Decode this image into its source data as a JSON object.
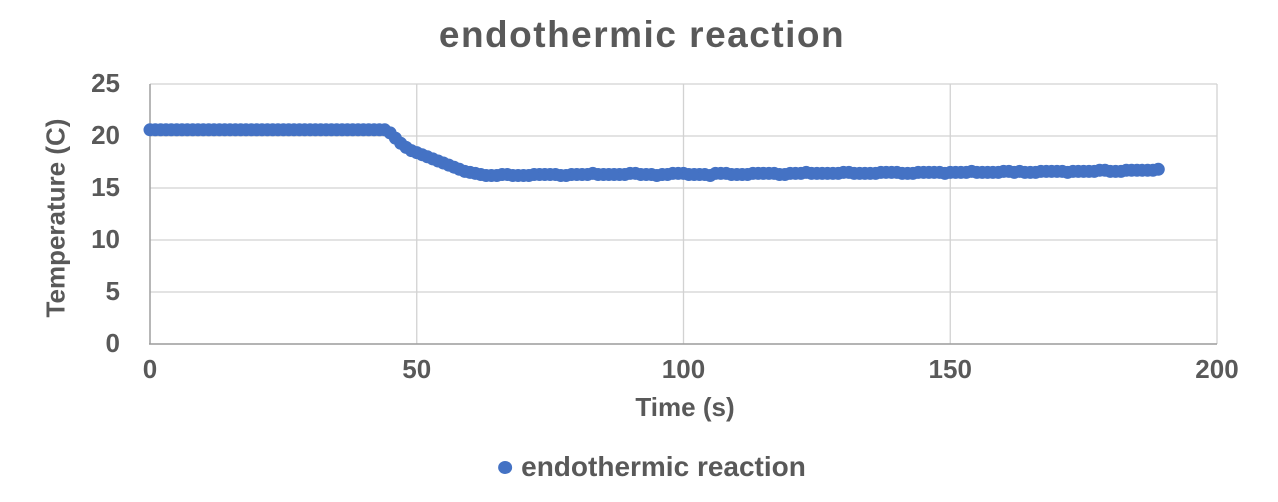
{
  "colors": {
    "series_fill": "#4472C4",
    "text": "#595959",
    "gridline": "#D2D2D2",
    "axis_line": "#9E9E9E"
  },
  "legend": {
    "label": "endothermic reaction"
  },
  "chart_data": {
    "type": "scatter",
    "title": "endothermic reaction",
    "xlabel": "Time (s)",
    "ylabel": "Temperature (C)",
    "xlim": [
      0,
      200
    ],
    "ylim": [
      0,
      25
    ],
    "x_ticks": [
      0,
      50,
      100,
      150,
      200
    ],
    "y_ticks": [
      0,
      5,
      10,
      15,
      20,
      25
    ],
    "grid": true,
    "legend_position": "bottom",
    "marker": "circle",
    "series": [
      {
        "name": "endothermic reaction",
        "color": "#4472C4",
        "t_start": 0,
        "t_step": 1,
        "values": [
          20.6,
          20.6,
          20.6,
          20.6,
          20.6,
          20.6,
          20.6,
          20.6,
          20.6,
          20.6,
          20.6,
          20.6,
          20.6,
          20.6,
          20.6,
          20.6,
          20.6,
          20.6,
          20.6,
          20.6,
          20.6,
          20.6,
          20.6,
          20.6,
          20.6,
          20.6,
          20.6,
          20.6,
          20.6,
          20.6,
          20.6,
          20.6,
          20.6,
          20.6,
          20.6,
          20.6,
          20.6,
          20.6,
          20.6,
          20.6,
          20.6,
          20.6,
          20.6,
          20.6,
          20.6,
          20.3,
          19.8,
          19.3,
          18.9,
          18.6,
          18.4,
          18.2,
          18.0,
          17.8,
          17.6,
          17.4,
          17.2,
          17.0,
          16.8,
          16.6,
          16.5,
          16.4,
          16.3,
          16.2,
          16.2,
          16.2,
          16.3,
          16.3,
          16.2,
          16.2,
          16.2,
          16.2,
          16.3,
          16.3,
          16.3,
          16.3,
          16.3,
          16.2,
          16.2,
          16.3,
          16.3,
          16.3,
          16.3,
          16.4,
          16.3,
          16.3,
          16.3,
          16.3,
          16.3,
          16.3,
          16.4,
          16.4,
          16.3,
          16.3,
          16.3,
          16.2,
          16.3,
          16.3,
          16.4,
          16.4,
          16.4,
          16.3,
          16.3,
          16.3,
          16.3,
          16.2,
          16.4,
          16.4,
          16.4,
          16.3,
          16.3,
          16.3,
          16.3,
          16.4,
          16.4,
          16.4,
          16.4,
          16.4,
          16.3,
          16.3,
          16.4,
          16.4,
          16.4,
          16.5,
          16.4,
          16.4,
          16.4,
          16.4,
          16.4,
          16.4,
          16.5,
          16.5,
          16.4,
          16.4,
          16.4,
          16.4,
          16.4,
          16.5,
          16.5,
          16.5,
          16.5,
          16.4,
          16.4,
          16.4,
          16.5,
          16.5,
          16.5,
          16.5,
          16.5,
          16.4,
          16.5,
          16.5,
          16.5,
          16.5,
          16.6,
          16.5,
          16.5,
          16.5,
          16.5,
          16.5,
          16.6,
          16.6,
          16.5,
          16.6,
          16.5,
          16.5,
          16.5,
          16.6,
          16.6,
          16.6,
          16.6,
          16.6,
          16.5,
          16.6,
          16.6,
          16.6,
          16.6,
          16.6,
          16.7,
          16.7,
          16.6,
          16.6,
          16.6,
          16.7,
          16.7,
          16.7,
          16.7,
          16.7,
          16.7,
          16.8
        ]
      }
    ]
  }
}
